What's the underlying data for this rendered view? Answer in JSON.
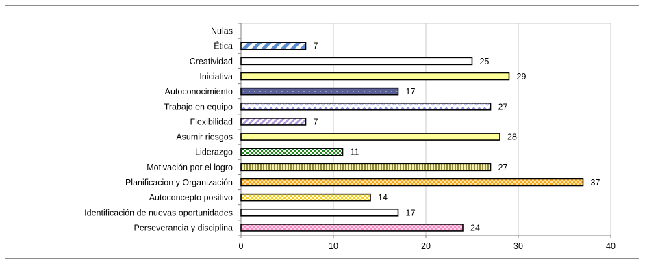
{
  "chart_data": {
    "type": "bar",
    "orientation": "horizontal",
    "title": "",
    "xlabel": "",
    "ylabel": "",
    "xlim": [
      0,
      40
    ],
    "x_ticks": [
      "0",
      "10",
      "20",
      "30",
      "40"
    ],
    "grid": true,
    "legend": "none",
    "categories": [
      "Nulas",
      "Ética",
      "Creatividad",
      "Iniciativa",
      "Autoconocimiento",
      "Trabajo en equipo",
      "Flexibilidad",
      "Asumir riesgos",
      "Liderazgo",
      "Motivación por el logro",
      "Planificacion y Organización",
      "Autoconcepto positivo",
      "Identificación de nuevas oportunidades",
      "Perseverancia y disciplina"
    ],
    "values": [
      null,
      7,
      25,
      29,
      17,
      27,
      7,
      28,
      11,
      27,
      37,
      14,
      17,
      24
    ],
    "data_labels": [
      "",
      "7",
      "25",
      "29",
      "17",
      "27",
      "7",
      "28",
      "11",
      "27",
      "37",
      "14",
      "17",
      "24"
    ],
    "bar_fills": [
      "none",
      "pattern-blue-diagonal",
      "white",
      "light-yellow",
      "navy-dotted",
      "lavender-wave",
      "lavender-diagonal",
      "light-yellow",
      "green-checker",
      "olive-vertical-stripes",
      "orange-checker",
      "yellow-checker",
      "white-blue-dots",
      "pink-checker"
    ]
  }
}
